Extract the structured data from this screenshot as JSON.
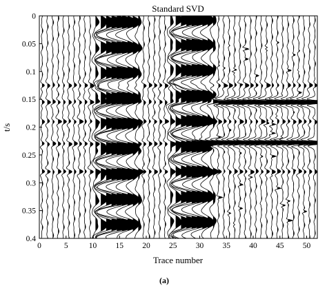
{
  "chart_data": {
    "type": "seismic-wiggle",
    "title": "Standard SVD",
    "xlabel": "Trace number",
    "ylabel": "t/s",
    "caption": "(a)",
    "xlim": [
      0,
      52
    ],
    "ylim": [
      0,
      0.4
    ],
    "y_reversed": true,
    "grid": false,
    "x_ticks": [
      0,
      5,
      10,
      15,
      20,
      25,
      30,
      35,
      40,
      45,
      50
    ],
    "x_tick_labels": [
      "0",
      "5",
      "10",
      "15",
      "20",
      "25",
      "30",
      "35",
      "40",
      "45",
      "50"
    ],
    "y_ticks": [
      0,
      0.05,
      0.1,
      0.15,
      0.2,
      0.25,
      0.3,
      0.35,
      0.4
    ],
    "y_tick_labels": [
      "0",
      "0.05",
      "0.1",
      "0.15",
      "0.2",
      "0.25",
      "0.3",
      "0.35",
      "0.4"
    ],
    "traces": [
      1,
      2,
      3,
      4,
      5,
      6,
      7,
      8,
      9,
      10,
      11,
      12,
      13,
      14,
      15,
      16,
      17,
      18,
      19,
      20,
      21,
      22,
      23,
      24,
      25,
      26,
      27,
      28,
      29,
      30,
      31,
      32,
      33,
      34,
      35,
      36,
      37,
      38,
      39,
      40,
      41,
      42,
      43,
      44,
      45,
      46,
      47,
      48,
      49,
      50,
      51,
      52
    ],
    "noise_band": {
      "traces": [
        11,
        19
      ],
      "period_s": 0.0455,
      "amplitude": 4.2
    },
    "noise_band_2": {
      "traces": [
        25,
        33
      ],
      "period_s": 0.0455,
      "amplitude": 4.0
    },
    "reflections_s": [
      0.125,
      0.155,
      0.19,
      0.23,
      0.28
    ],
    "strong_events": [
      {
        "t": 0.155,
        "traces": [
          33,
          52
        ],
        "amplitude": 3.2
      },
      {
        "t": 0.228,
        "traces": [
          30,
          52
        ],
        "amplitude": 3.0
      }
    ]
  }
}
